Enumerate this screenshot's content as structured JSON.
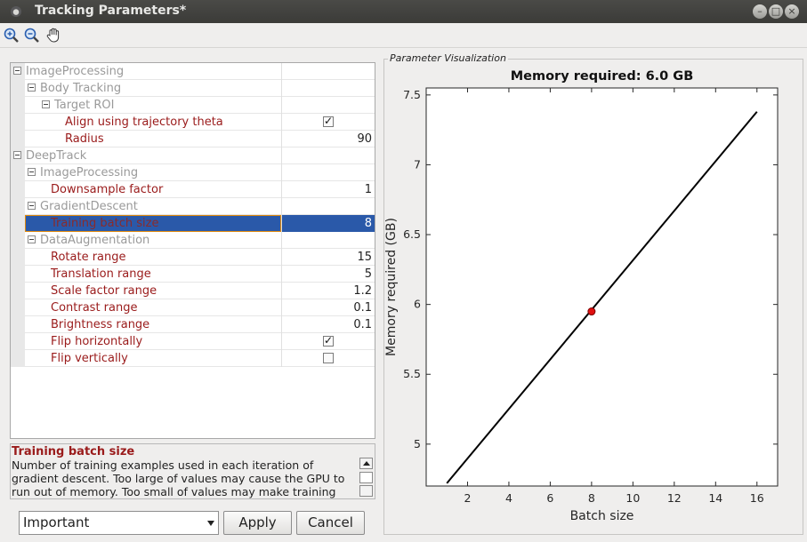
{
  "window": {
    "title": "Tracking Parameters*",
    "buttons": [
      "–",
      "□",
      "×"
    ]
  },
  "toolbar": {
    "tools": [
      {
        "name": "zoom-in-icon"
      },
      {
        "name": "zoom-out-icon"
      },
      {
        "name": "pan-hand-icon"
      }
    ]
  },
  "grid": {
    "rows": [
      {
        "label": "ImageProcessing",
        "type": "group",
        "level": 0
      },
      {
        "label": "Body Tracking",
        "type": "group",
        "level": 1
      },
      {
        "label": "Target ROI",
        "type": "group",
        "level": 2
      },
      {
        "label": "Align using trajectory theta",
        "type": "checkbox",
        "level": 3,
        "checked": true
      },
      {
        "label": "Radius",
        "type": "value",
        "level": 3,
        "value": "90"
      },
      {
        "label": "DeepTrack",
        "type": "group",
        "level": 0
      },
      {
        "label": "ImageProcessing",
        "type": "group",
        "level": 1
      },
      {
        "label": "Downsample factor",
        "type": "value",
        "level": 2,
        "value": "1"
      },
      {
        "label": "GradientDescent",
        "type": "group",
        "level": 1
      },
      {
        "label": "Training batch size",
        "type": "value",
        "level": 2,
        "value": "8",
        "selected": true
      },
      {
        "label": "DataAugmentation",
        "type": "group",
        "level": 1
      },
      {
        "label": "Rotate range",
        "type": "value",
        "level": 2,
        "value": "15"
      },
      {
        "label": "Translation range",
        "type": "value",
        "level": 2,
        "value": "5"
      },
      {
        "label": "Scale factor range",
        "type": "value",
        "level": 2,
        "value": "1.2"
      },
      {
        "label": "Contrast range",
        "type": "value",
        "level": 2,
        "value": "0.1"
      },
      {
        "label": "Brightness range",
        "type": "value",
        "level": 2,
        "value": "0.1"
      },
      {
        "label": "Flip horizontally",
        "type": "checkbox",
        "level": 2,
        "checked": true
      },
      {
        "label": "Flip vertically",
        "type": "checkbox",
        "level": 2,
        "checked": false
      }
    ]
  },
  "description": {
    "title": "Training batch size",
    "text": "Number of training examples used in each iteration of gradient descent. Too large of values may cause the GPU to run out of memory. Too small of values may make training"
  },
  "controls": {
    "level_select": "Important",
    "apply": "Apply",
    "cancel": "Cancel"
  },
  "panel": {
    "legend": "Parameter Visualization"
  },
  "chart_data": {
    "type": "line",
    "title": "Memory required: 6.0 GB",
    "xlabel": "Batch size",
    "ylabel": "Memory required (GB)",
    "xlim": [
      0,
      17
    ],
    "ylim": [
      4.7,
      7.55
    ],
    "xticks": [
      2,
      4,
      6,
      8,
      10,
      12,
      14,
      16
    ],
    "yticks": [
      5,
      5.5,
      6,
      6.5,
      7,
      7.5
    ],
    "series": [
      {
        "x": [
          1,
          16
        ],
        "y": [
          4.72,
          7.38
        ],
        "color": "#000000"
      }
    ],
    "marker": {
      "x": 8,
      "y": 5.95,
      "color": "#e01010"
    },
    "grid": false
  }
}
